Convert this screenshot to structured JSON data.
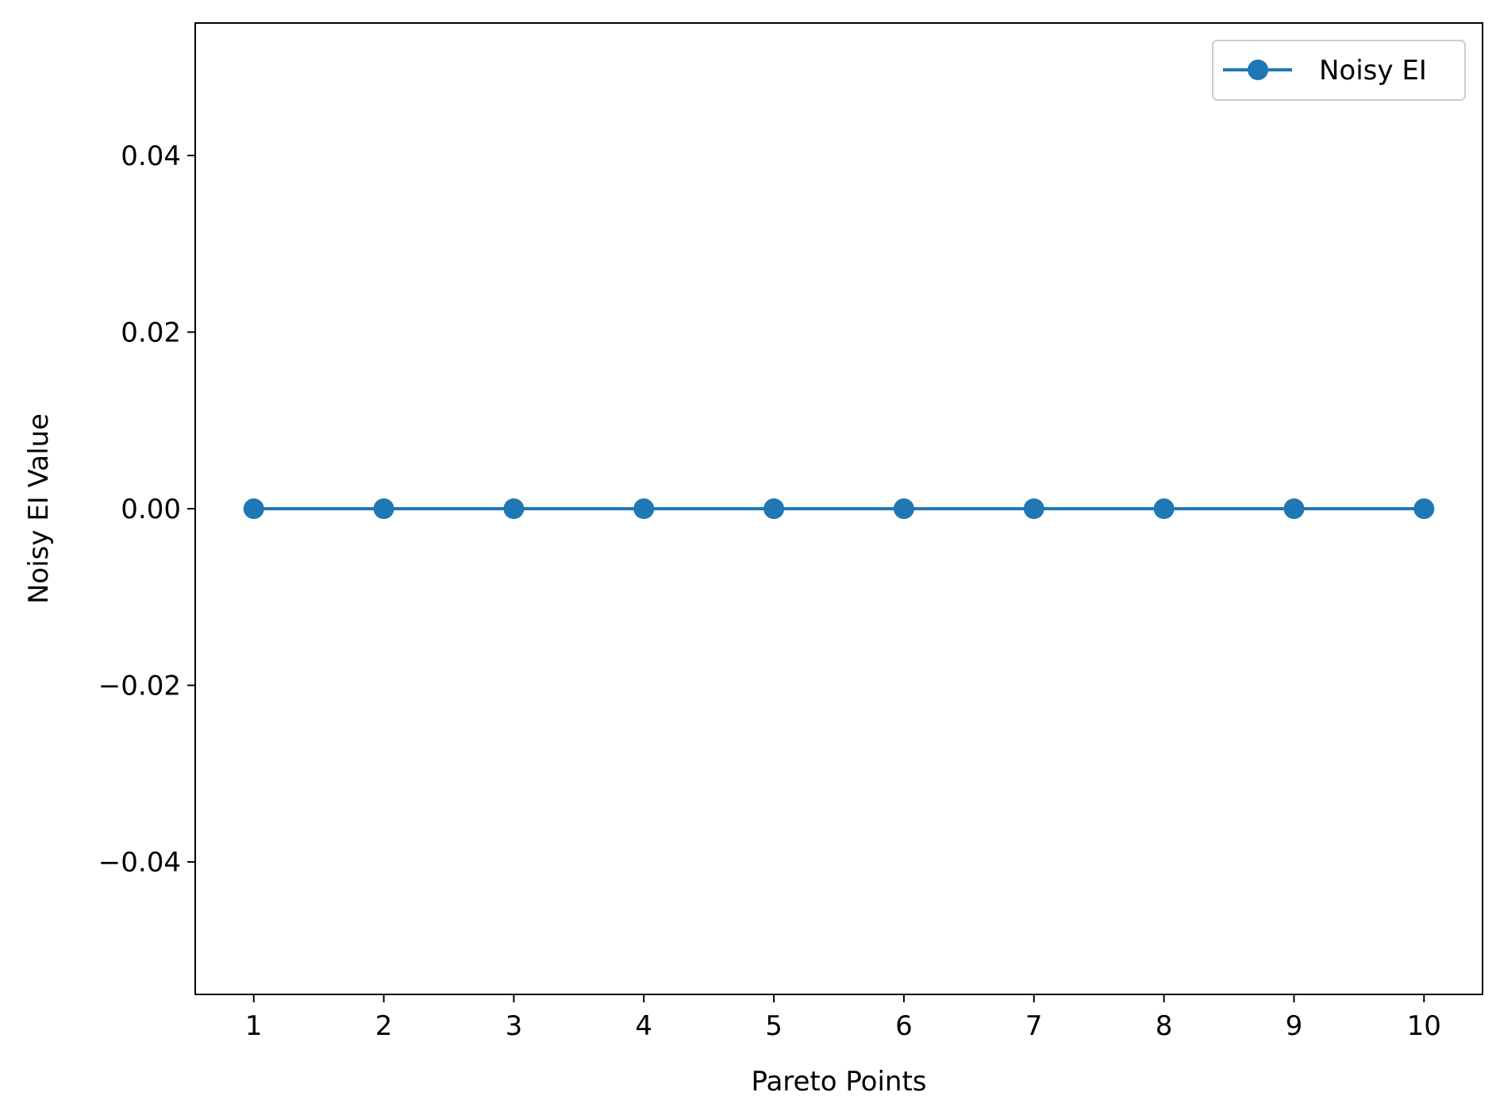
{
  "chart_data": {
    "type": "line",
    "title": "",
    "xlabel": "Pareto Points",
    "ylabel": "Noisy EI Value",
    "x": [
      1,
      2,
      3,
      4,
      5,
      6,
      7,
      8,
      9,
      10
    ],
    "xticks": [
      1,
      2,
      3,
      4,
      5,
      6,
      7,
      8,
      9,
      10
    ],
    "xtick_labels": [
      "1",
      "2",
      "3",
      "4",
      "5",
      "6",
      "7",
      "8",
      "9",
      "10"
    ],
    "xlim": [
      0.55,
      10.45
    ],
    "ylim": [
      -0.055,
      0.055
    ],
    "yticks": [
      -0.04,
      -0.02,
      0.0,
      0.02,
      0.04
    ],
    "ytick_labels": [
      "−0.04",
      "−0.02",
      "0.00",
      "0.02",
      "0.04"
    ],
    "series": [
      {
        "name": "Noisy EI",
        "color": "#1f77b4",
        "marker": "circle",
        "values": [
          0,
          0,
          0,
          0,
          0,
          0,
          0,
          0,
          0,
          0
        ]
      }
    ],
    "legend": {
      "placement": "top-right",
      "entries": [
        "Noisy EI"
      ]
    },
    "grid": false
  }
}
